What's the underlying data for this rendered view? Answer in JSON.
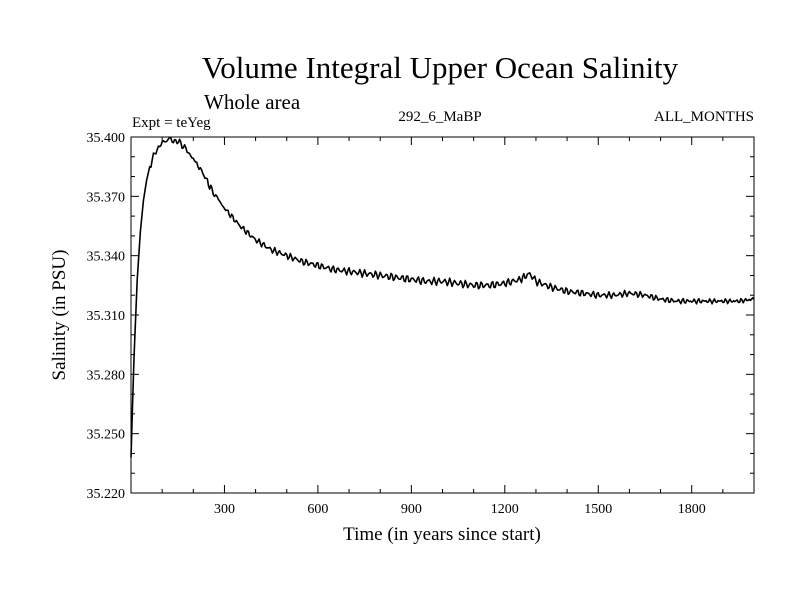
{
  "chart_data": {
    "type": "line",
    "title": "Volume Integral Upper Ocean Salinity",
    "subtitle": "Whole area",
    "expt_label": "Expt = teYeg",
    "run_label": "292_6_MaBP",
    "months_label": "ALL_MONTHS",
    "xlabel": "Time (in years since start)",
    "ylabel": "Salinity (in PSU)",
    "xlim": [
      0,
      2000
    ],
    "ylim": [
      35.22,
      35.4
    ],
    "grid": false,
    "xticks": [
      300,
      600,
      900,
      1200,
      1500,
      1800
    ],
    "xtick_labels": [
      "300",
      "600",
      "900",
      "1200",
      "1500",
      "1800"
    ],
    "yticks": [
      35.22,
      35.25,
      35.28,
      35.31,
      35.34,
      35.37,
      35.4
    ],
    "ytick_labels": [
      "35.220",
      "35.250",
      "35.280",
      "35.310",
      "35.340",
      "35.370",
      "35.400"
    ],
    "series": [
      {
        "name": "Salinity",
        "color": "#000000",
        "x": [
          0,
          5,
          10,
          20,
          30,
          40,
          50,
          60,
          80,
          100,
          120,
          140,
          160,
          180,
          200,
          230,
          260,
          300,
          350,
          400,
          450,
          500,
          550,
          600,
          650,
          700,
          750,
          800,
          850,
          900,
          950,
          1000,
          1050,
          1100,
          1150,
          1200,
          1250,
          1280,
          1300,
          1350,
          1400,
          1450,
          1500,
          1550,
          1600,
          1650,
          1700,
          1750,
          1800,
          1850,
          1900,
          1950,
          2000
        ],
        "y": [
          35.238,
          35.265,
          35.29,
          35.328,
          35.352,
          35.368,
          35.378,
          35.385,
          35.393,
          35.397,
          35.399,
          35.398,
          35.397,
          35.393,
          35.389,
          35.382,
          35.373,
          35.364,
          35.355,
          35.348,
          35.343,
          35.34,
          35.337,
          35.335,
          35.333,
          35.332,
          35.331,
          35.33,
          35.329,
          35.328,
          35.327,
          35.327,
          35.326,
          35.325,
          35.325,
          35.326,
          35.328,
          35.331,
          35.327,
          35.324,
          35.322,
          35.321,
          35.32,
          35.32,
          35.321,
          35.32,
          35.318,
          35.317,
          35.317,
          35.317,
          35.317,
          35.317,
          35.318
        ]
      }
    ]
  }
}
